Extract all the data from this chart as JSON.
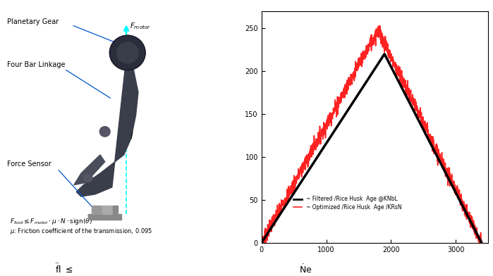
{
  "yticks": [
    0,
    50,
    100,
    150,
    200,
    250
  ],
  "xticks": [
    0,
    1000,
    2000,
    3000
  ],
  "xlim": [
    0,
    3500
  ],
  "ylim": [
    0,
    270
  ],
  "x_peak_black": 1900,
  "x_peak_red": 1800,
  "black_peak": 220,
  "red_peak": 248,
  "x_end": 3400,
  "bg_color": "#ffffff",
  "line_black": "#000000",
  "line_red": "#ff2222",
  "line_black_lw": 2.5,
  "line_red_lw": 1.2,
  "noise_std": 4.5,
  "noise_seed": 7
}
